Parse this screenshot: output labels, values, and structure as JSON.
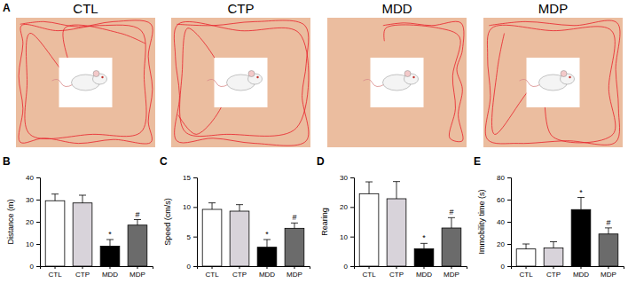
{
  "track_panels": {
    "panel_label": "A",
    "titles": [
      "CTL",
      "CTP",
      "MDD",
      "MDP"
    ]
  },
  "chart_data": [
    {
      "type": "bar",
      "panel_label": "B",
      "y_label": "Distance (m)",
      "categories": [
        "CTL",
        "CTP",
        "MDD",
        "MDP"
      ],
      "values": [
        29.5,
        28.5,
        9,
        18.5
      ],
      "errors": [
        3,
        3.5,
        3,
        2.5
      ],
      "significance": [
        null,
        null,
        "*",
        "#"
      ],
      "colors": [
        "#ffffff",
        "#d8d3da",
        "#000000",
        "#6b6b6b"
      ],
      "ylim": [
        0,
        40
      ],
      "yticks": [
        0,
        10,
        20,
        30,
        40
      ]
    },
    {
      "type": "bar",
      "panel_label": "C",
      "y_label": "Speed (cm/s)",
      "categories": [
        "CTL",
        "CTP",
        "MDD",
        "MDP"
      ],
      "values": [
        9.6,
        9.3,
        3.2,
        6.4
      ],
      "errors": [
        1.1,
        1.1,
        1.3,
        0.9
      ],
      "significance": [
        null,
        null,
        "*",
        "#"
      ],
      "colors": [
        "#ffffff",
        "#d8d3da",
        "#000000",
        "#6b6b6b"
      ],
      "ylim": [
        0,
        15
      ],
      "yticks": [
        0,
        5,
        10,
        15
      ]
    },
    {
      "type": "bar",
      "panel_label": "D",
      "y_label": "Rearing",
      "categories": [
        "CTL",
        "CTP",
        "MDD",
        "MDP"
      ],
      "values": [
        24.5,
        22.8,
        5.9,
        12.9
      ],
      "errors": [
        4,
        5.8,
        1.8,
        3.5
      ],
      "significance": [
        null,
        null,
        "*",
        "#"
      ],
      "colors": [
        "#ffffff",
        "#d8d3da",
        "#000000",
        "#6b6b6b"
      ],
      "ylim": [
        0,
        30
      ],
      "yticks": [
        0,
        10,
        20,
        30
      ]
    },
    {
      "type": "bar",
      "panel_label": "E",
      "y_label": "Immobility time (s)",
      "categories": [
        "CTL",
        "CTP",
        "MDD",
        "MDP"
      ],
      "values": [
        15.5,
        16.5,
        51,
        29
      ],
      "errors": [
        4.5,
        5.5,
        11,
        5.5
      ],
      "significance": [
        null,
        null,
        "*",
        "#"
      ],
      "colors": [
        "#ffffff",
        "#d8d3da",
        "#000000",
        "#6b6b6b"
      ],
      "ylim": [
        0,
        80
      ],
      "yticks": [
        0,
        20,
        40,
        60,
        80
      ]
    }
  ]
}
